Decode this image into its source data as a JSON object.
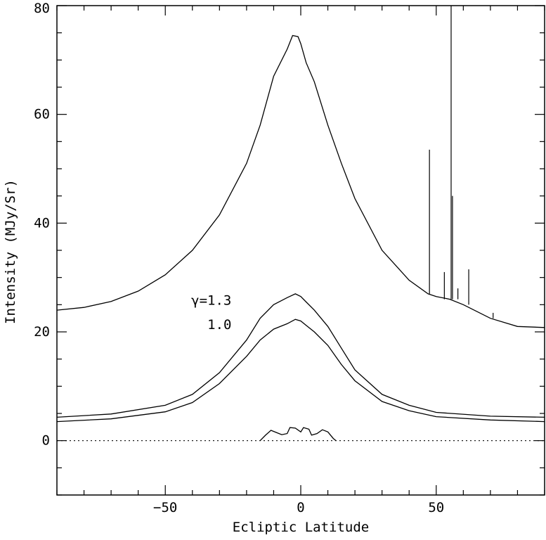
{
  "chart_data": {
    "type": "line",
    "xlabel": "Ecliptic Latitude",
    "ylabel": "Intensity (MJy/Sr)",
    "xlim": [
      -90,
      90
    ],
    "ylim": [
      -10,
      80
    ],
    "x_ticks": [
      -50,
      0,
      50
    ],
    "x_tick_labels": [
      "−50",
      "0",
      "50"
    ],
    "y_ticks": [
      0,
      20,
      40,
      60,
      80
    ],
    "y_tick_labels": [
      "0",
      "20",
      "40",
      "60",
      "80"
    ],
    "grid": false,
    "legend": "none",
    "annotations": [
      {
        "text": "γ=1.3",
        "x": -33,
        "y": 25
      },
      {
        "text": "1.0",
        "x": -30,
        "y": 20.5
      }
    ],
    "series": [
      {
        "style": "solid",
        "x": [
          -90,
          -80,
          -70,
          -60,
          -50,
          -40,
          -30,
          -20,
          -15,
          -10,
          -5,
          -3,
          -1,
          0,
          2,
          5,
          10,
          15,
          20,
          30,
          40,
          47,
          50,
          55,
          60,
          70,
          80,
          90
        ],
        "y": [
          24,
          24.5,
          25.6,
          27.5,
          30.5,
          35,
          41.5,
          51,
          58,
          67,
          72,
          74.5,
          74.3,
          73,
          69.5,
          66,
          58,
          51,
          44.5,
          35,
          29.5,
          27,
          26.5,
          26,
          25,
          22.5,
          21,
          20.8
        ]
      },
      {
        "style": "solid",
        "x": [
          -90,
          -70,
          -50,
          -40,
          -30,
          -20,
          -15,
          -10,
          -5,
          -2,
          0,
          2,
          5,
          10,
          15,
          20,
          30,
          40,
          50,
          70,
          90
        ],
        "y": [
          4.3,
          4.9,
          6.5,
          8.5,
          12.5,
          18.5,
          22.5,
          25,
          26.3,
          27,
          26.5,
          25.5,
          24,
          21,
          17,
          13,
          8.5,
          6.5,
          5.2,
          4.5,
          4.3
        ]
      },
      {
        "style": "solid",
        "x": [
          -90,
          -70,
          -50,
          -40,
          -30,
          -20,
          -15,
          -10,
          -5,
          -2,
          0,
          2,
          5,
          10,
          15,
          20,
          30,
          40,
          50,
          70,
          90
        ],
        "y": [
          3.5,
          4.0,
          5.3,
          7.0,
          10.5,
          15.5,
          18.5,
          20.5,
          21.5,
          22.3,
          22,
          21.2,
          20,
          17.5,
          14,
          11,
          7.2,
          5.5,
          4.4,
          3.8,
          3.5
        ]
      },
      {
        "style": "solid",
        "x": [
          -15,
          -13,
          -11,
          -9,
          -7,
          -5,
          -4,
          -2,
          0,
          1,
          3,
          4,
          6,
          8,
          10,
          12,
          13
        ],
        "y": [
          0,
          1,
          1.9,
          1.5,
          1.1,
          1.3,
          2.4,
          2.3,
          1.6,
          2.4,
          2.1,
          1.0,
          1.3,
          2.0,
          1.6,
          0.4,
          0
        ]
      },
      {
        "style": "dotted",
        "x": [
          -90,
          90
        ],
        "y": [
          0,
          0
        ]
      }
    ],
    "spikes": [
      {
        "x": 47.5,
        "base": 27,
        "top": 53.5
      },
      {
        "x": 53,
        "base": 26,
        "top": 31
      },
      {
        "x": 55.5,
        "base": 26,
        "top": 80
      },
      {
        "x": 56,
        "base": 26,
        "top": 45
      },
      {
        "x": 58,
        "base": 26,
        "top": 28
      },
      {
        "x": 62,
        "base": 25,
        "top": 31.5
      },
      {
        "x": 71,
        "base": 22.5,
        "top": 23.5
      }
    ]
  }
}
